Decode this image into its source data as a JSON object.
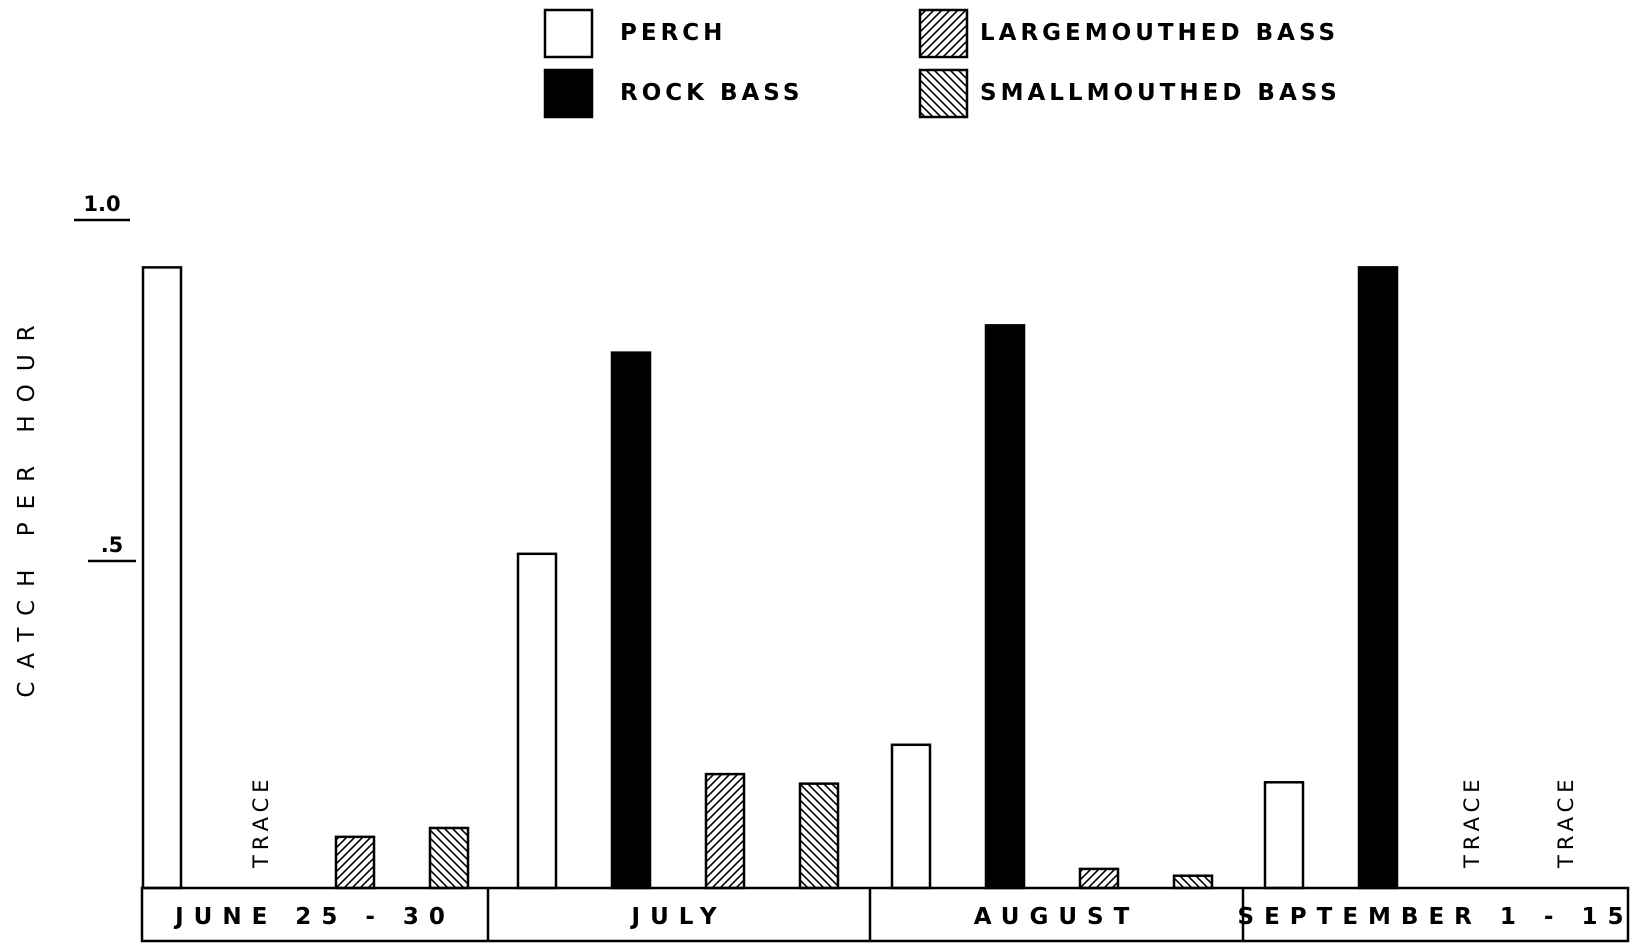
{
  "chart_data": {
    "type": "bar",
    "ylabel": "CATCH PER HOUR",
    "xlabel": "",
    "ylim": [
      0,
      1.22
    ],
    "yticks": [
      {
        "value": 1.0,
        "label": "1.0"
      },
      {
        "value": 0.5,
        "label": ".5"
      }
    ],
    "categories": [
      "JUNE 25 - 30",
      "JULY",
      "AUGUST",
      "SEPTEMBER 1 - 15"
    ],
    "legend_position": "top-center",
    "trace_label": "TRACE",
    "series": [
      {
        "name": "PERCH",
        "pattern": "white",
        "values": [
          0.91,
          0.49,
          0.21,
          0.155
        ]
      },
      {
        "name": "ROCK BASS",
        "pattern": "black",
        "values": [
          null,
          0.785,
          0.825,
          0.91
        ]
      },
      {
        "name": "LARGEMOUTHED BASS",
        "pattern": "forward-hatch",
        "values": [
          0.075,
          0.167,
          0.028,
          null
        ]
      },
      {
        "name": "SMALLMOUTHED BASS",
        "pattern": "backward-hatch",
        "values": [
          0.088,
          0.153,
          0.018,
          null
        ]
      }
    ],
    "traces": [
      {
        "category": 0,
        "series": 1
      },
      {
        "category": 3,
        "series": 2
      },
      {
        "category": 3,
        "series": 3
      }
    ],
    "grid": false
  }
}
